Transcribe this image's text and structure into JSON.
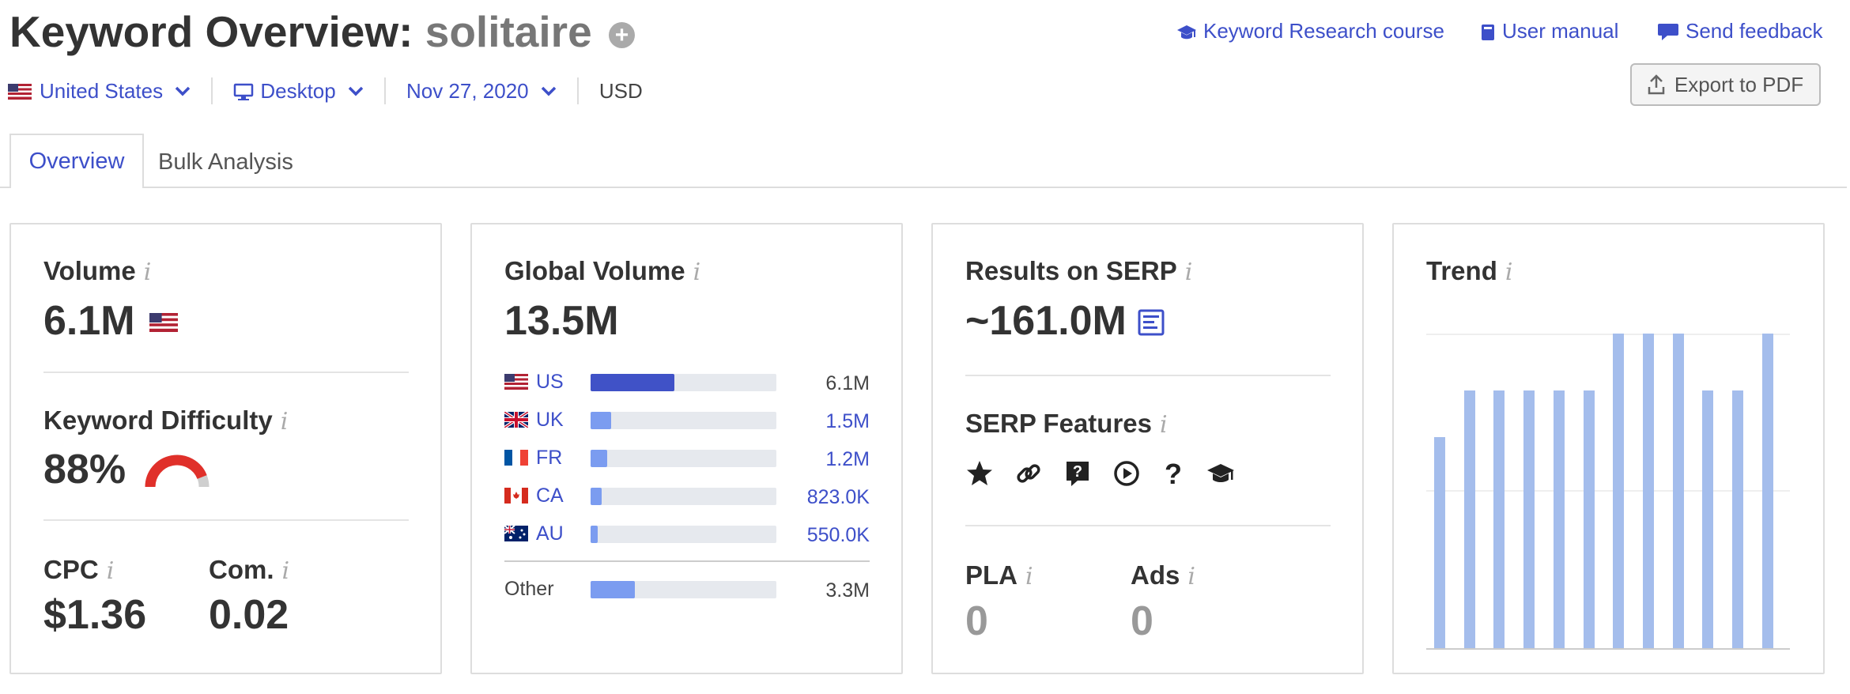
{
  "header": {
    "title_prefix": "Keyword Overview:",
    "keyword": "solitaire",
    "plus_icon": "+",
    "links": {
      "course": "Keyword Research course",
      "manual": "User manual",
      "feedback": "Send feedback"
    }
  },
  "toolbar": {
    "country": "United States",
    "device": "Desktop",
    "date": "Nov 27, 2020",
    "currency": "USD",
    "export_label": "Export to PDF"
  },
  "tabs": {
    "overview": "Overview",
    "bulk": "Bulk Analysis"
  },
  "volume_card": {
    "volume_label": "Volume",
    "volume_value": "6.1M",
    "kd_label": "Keyword Difficulty",
    "kd_value": "88%",
    "kd_percent": 88,
    "cpc_label": "CPC",
    "cpc_value": "$1.36",
    "com_label": "Com.",
    "com_value": "0.02",
    "info": "i"
  },
  "global_card": {
    "label": "Global Volume",
    "value": "13.5M",
    "countries": [
      {
        "code": "US",
        "value": "6.1M",
        "share": 0.45
      },
      {
        "code": "UK",
        "value": "1.5M",
        "share": 0.11
      },
      {
        "code": "FR",
        "value": "1.2M",
        "share": 0.09
      },
      {
        "code": "CA",
        "value": "823.0K",
        "share": 0.06
      },
      {
        "code": "AU",
        "value": "550.0K",
        "share": 0.04
      }
    ],
    "other": {
      "label": "Other",
      "value": "3.3M",
      "share": 0.24
    }
  },
  "serp_card": {
    "results_label": "Results on SERP",
    "results_value": "~161.0M",
    "features_label": "SERP Features",
    "feature_icons": [
      "star-icon",
      "link-icon",
      "question-bubble-icon",
      "play-icon",
      "question-icon",
      "graduation-cap-icon"
    ],
    "pla_label": "PLA",
    "pla_value": "0",
    "ads_label": "Ads",
    "ads_value": "0"
  },
  "trend_card": {
    "label": "Trend",
    "values": [
      0.67,
      0.82,
      0.82,
      0.82,
      0.82,
      0.82,
      1.0,
      1.0,
      1.0,
      0.82,
      0.82,
      1.0
    ]
  },
  "colors": {
    "accent": "#3d4fc9",
    "bar_dark": "#4052c7",
    "bar_light": "#7b9cf0",
    "trend": "#a4bdec",
    "kd_red": "#e0302a"
  }
}
